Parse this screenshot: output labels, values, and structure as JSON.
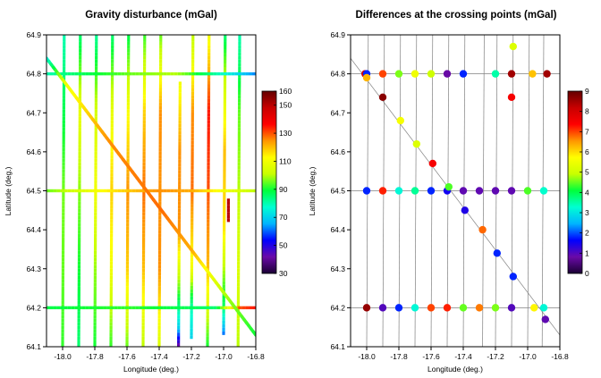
{
  "chart_data": [
    {
      "type": "heatmap",
      "title": "Gravity disturbance (mGal)",
      "xlabel": "Longitude (deg.)",
      "ylabel": "Latitude (deg.)",
      "xlim": [
        -18.1,
        -16.8
      ],
      "ylim": [
        64.1,
        64.9
      ],
      "x_ticks": [
        -18.0,
        -17.8,
        -17.6,
        -17.4,
        -17.2,
        -17.0,
        -16.8
      ],
      "x_tick_labels": [
        "-18.0",
        "-17.8",
        "-17.6",
        "-17.4",
        "-17.2",
        "-17.0",
        "-16.8"
      ],
      "y_ticks": [
        64.1,
        64.2,
        64.3,
        64.4,
        64.5,
        64.6,
        64.7,
        64.8,
        64.9
      ],
      "y_tick_labels": [
        "64.1",
        "64.2",
        "64.3",
        "64.4",
        "64.5",
        "64.6",
        "64.7",
        "64.8",
        "64.9"
      ],
      "colorbar": {
        "min": 30,
        "max": 160,
        "ticks": [
          30,
          50,
          70,
          90,
          110,
          130,
          150,
          160
        ],
        "tick_labels": [
          "30",
          "50",
          "70",
          "90",
          "110",
          "130",
          "150",
          "160"
        ],
        "colors": [
          "#1a0033",
          "#6a0aa8",
          "#0000ff",
          "#00b4ff",
          "#00ffd2",
          "#00ff3c",
          "#c8ff00",
          "#ffff00",
          "#ff9600",
          "#ff0000",
          "#c80000",
          "#640000"
        ]
      },
      "grid": false,
      "legend": "colorbar right",
      "north_south_lines": [
        {
          "lon_bottom": -18.0,
          "lon_top": -17.99,
          "lat_start": 64.1,
          "lat_end": 64.9,
          "values": [
            [
              64.1,
              92
            ],
            [
              64.3,
              95
            ],
            [
              64.5,
              96
            ],
            [
              64.7,
              88
            ],
            [
              64.9,
              80
            ]
          ]
        },
        {
          "lon_bottom": -17.9,
          "lon_top": -17.89,
          "lat_start": 64.1,
          "lat_end": 64.9,
          "values": [
            [
              64.1,
              85
            ],
            [
              64.3,
              90
            ],
            [
              64.5,
              97
            ],
            [
              64.7,
              108
            ],
            [
              64.9,
              85
            ]
          ]
        },
        {
          "lon_bottom": -17.8,
          "lon_top": -17.79,
          "lat_start": 64.1,
          "lat_end": 64.9,
          "values": [
            [
              64.1,
              90
            ],
            [
              64.3,
              98
            ],
            [
              64.5,
              110
            ],
            [
              64.7,
              104
            ],
            [
              64.9,
              82
            ]
          ]
        },
        {
          "lon_bottom": -17.7,
          "lon_top": -17.69,
          "lat_start": 64.1,
          "lat_end": 64.9,
          "values": [
            [
              64.1,
              92
            ],
            [
              64.3,
              110
            ],
            [
              64.5,
              118
            ],
            [
              64.7,
              108
            ],
            [
              64.9,
              85
            ]
          ]
        },
        {
          "lon_bottom": -17.6,
          "lon_top": -17.59,
          "lat_start": 64.1,
          "lat_end": 64.9,
          "values": [
            [
              64.1,
              95
            ],
            [
              64.3,
              118
            ],
            [
              64.5,
              125
            ],
            [
              64.7,
              112
            ],
            [
              64.9,
              88
            ]
          ]
        },
        {
          "lon_bottom": -17.5,
          "lon_top": -17.49,
          "lat_start": 64.1,
          "lat_end": 64.9,
          "values": [
            [
              64.1,
              100
            ],
            [
              64.3,
              120
            ],
            [
              64.5,
              128
            ],
            [
              64.7,
              118
            ],
            [
              64.9,
              92
            ]
          ]
        },
        {
          "lon_bottom": -17.4,
          "lon_top": -17.39,
          "lat_start": 64.1,
          "lat_end": 64.9,
          "values": [
            [
              64.1,
              105
            ],
            [
              64.3,
              125
            ],
            [
              64.5,
              125
            ],
            [
              64.7,
              125
            ],
            [
              64.9,
              95
            ]
          ]
        },
        {
          "lon_bottom": -17.28,
          "lon_top": -17.27,
          "lat_start": 64.1,
          "lat_end": 64.78,
          "values": [
            [
              64.1,
              40
            ],
            [
              64.15,
              70
            ],
            [
              64.25,
              95
            ],
            [
              64.4,
              125
            ],
            [
              64.6,
              125
            ],
            [
              64.78,
              110
            ]
          ]
        },
        {
          "lon_bottom": -17.2,
          "lon_top": -17.19,
          "lat_start": 64.12,
          "lat_end": 64.9,
          "values": [
            [
              64.12,
              70
            ],
            [
              64.2,
              80
            ],
            [
              64.3,
              110
            ],
            [
              64.5,
              128
            ],
            [
              64.7,
              125
            ],
            [
              64.9,
              100
            ]
          ]
        },
        {
          "lon_bottom": -17.1,
          "lon_top": -17.09,
          "lat_start": 64.1,
          "lat_end": 64.9,
          "values": [
            [
              64.1,
              90
            ],
            [
              64.3,
              120
            ],
            [
              64.5,
              130
            ],
            [
              64.7,
              135
            ],
            [
              64.9,
              110
            ]
          ]
        },
        {
          "lon_bottom": -17.0,
          "lon_top": -16.99,
          "lat_start": 64.13,
          "lat_end": 64.9,
          "values": [
            [
              64.13,
              60
            ],
            [
              64.2,
              85
            ],
            [
              64.4,
              115
            ],
            [
              64.6,
              120
            ],
            [
              64.8,
              100
            ],
            [
              64.9,
              85
            ]
          ]
        },
        {
          "lon_bottom": -16.91,
          "lon_top": -16.9,
          "lat_start": 64.1,
          "lat_end": 64.9,
          "values": [
            [
              64.1,
              100
            ],
            [
              64.3,
              105
            ],
            [
              64.5,
              100
            ],
            [
              64.7,
              95
            ],
            [
              64.9,
              80
            ]
          ]
        },
        {
          "lon_bottom": -16.97,
          "lon_top": -16.97,
          "lat_start": 64.42,
          "lat_end": 64.48,
          "values": [
            [
              64.42,
              150
            ],
            [
              64.48,
              150
            ]
          ]
        }
      ],
      "east_west_lines": [
        {
          "lat": 64.8,
          "lon_start": -18.1,
          "lon_end": -16.8,
          "values": [
            [
              -18.1,
              80
            ],
            [
              -17.6,
              95
            ],
            [
              -17.3,
              100
            ],
            [
              -17.1,
              85
            ],
            [
              -16.9,
              70
            ],
            [
              -16.8,
              62
            ]
          ]
        },
        {
          "lat": 64.5,
          "lon_start": -18.1,
          "lon_end": -16.8,
          "values": [
            [
              -18.1,
              95
            ],
            [
              -17.7,
              115
            ],
            [
              -17.4,
              125
            ],
            [
              -17.2,
              122
            ],
            [
              -17.0,
              110
            ],
            [
              -16.8,
              100
            ]
          ]
        },
        {
          "lat": 64.2,
          "lon_start": -18.1,
          "lon_end": -16.8,
          "values": [
            [
              -18.1,
              88
            ],
            [
              -17.6,
              92
            ],
            [
              -17.3,
              88
            ],
            [
              -17.05,
              85
            ],
            [
              -16.9,
              130
            ],
            [
              -16.8,
              135
            ]
          ]
        }
      ],
      "diagonal_line": {
        "start": [
          -18.1,
          64.84
        ],
        "end": [
          -16.8,
          64.13
        ],
        "values": [
          [
            0,
            75
          ],
          [
            0.1,
            110
          ],
          [
            0.3,
            125
          ],
          [
            0.55,
            128
          ],
          [
            0.7,
            122
          ],
          [
            0.85,
            100
          ],
          [
            1,
            90
          ]
        ]
      }
    },
    {
      "type": "scatter",
      "title": "Differences at the crossing points (mGal)",
      "xlabel": "Longitude (deg.)",
      "ylabel": "Latitude (deg.)",
      "xlim": [
        -18.1,
        -16.8
      ],
      "ylim": [
        64.1,
        64.9
      ],
      "x_ticks": [
        -18.0,
        -17.8,
        -17.6,
        -17.4,
        -17.2,
        -17.0,
        -16.8
      ],
      "x_tick_labels": [
        "-18.0",
        "-17.8",
        "-17.6",
        "-17.4",
        "-17.2",
        "-17.0",
        "-16.8"
      ],
      "y_ticks": [
        64.1,
        64.2,
        64.3,
        64.4,
        64.5,
        64.6,
        64.7,
        64.8,
        64.9
      ],
      "y_tick_labels": [
        "64.1",
        "64.2",
        "64.3",
        "64.4",
        "64.5",
        "64.6",
        "64.7",
        "64.8",
        "64.9"
      ],
      "colorbar": {
        "min": 0,
        "max": 9,
        "ticks": [
          0,
          1,
          2,
          3,
          4,
          5,
          6,
          7,
          8,
          9
        ],
        "tick_labels": [
          "0",
          "1",
          "2",
          "3",
          "4",
          "5",
          "6",
          "7",
          "8",
          "9"
        ],
        "colors": [
          "#1a0033",
          "#6a0aa8",
          "#0000ff",
          "#00b4ff",
          "#00ffd2",
          "#00ff3c",
          "#c8ff00",
          "#ffff00",
          "#ff9600",
          "#ff0000",
          "#c80000",
          "#640000"
        ]
      },
      "grid": false,
      "legend": "colorbar right",
      "track_lines": {
        "north_south": [
          [
            -18.0,
            -17.99
          ],
          [
            -17.9,
            -17.89
          ],
          [
            -17.8,
            -17.79
          ],
          [
            -17.7,
            -17.69
          ],
          [
            -17.6,
            -17.59
          ],
          [
            -17.5,
            -17.49
          ],
          [
            -17.4,
            -17.39
          ],
          [
            -17.28,
            -17.27
          ],
          [
            -17.2,
            -17.19
          ],
          [
            -17.1,
            -17.09
          ],
          [
            -17.0,
            -16.99
          ],
          [
            -16.91,
            -16.9
          ]
        ],
        "east_west": [
          64.8,
          64.5,
          64.2
        ],
        "diagonal": [
          [
            -18.1,
            64.84
          ],
          [
            -16.8,
            64.13
          ]
        ]
      },
      "points": [
        {
          "x": -18.01,
          "y": 64.8,
          "v": 8.0
        },
        {
          "x": -18.0,
          "y": 64.8,
          "v": 1.8
        },
        {
          "x": -18.0,
          "y": 64.79,
          "v": 6.3
        },
        {
          "x": -17.9,
          "y": 64.8,
          "v": 7.0
        },
        {
          "x": -17.8,
          "y": 64.8,
          "v": 4.6
        },
        {
          "x": -17.7,
          "y": 64.8,
          "v": 5.5
        },
        {
          "x": -17.6,
          "y": 64.8,
          "v": 5.0
        },
        {
          "x": -17.5,
          "y": 64.8,
          "v": 0.8
        },
        {
          "x": -17.4,
          "y": 64.8,
          "v": 1.8
        },
        {
          "x": -17.2,
          "y": 64.8,
          "v": 3.5
        },
        {
          "x": -17.1,
          "y": 64.8,
          "v": 8.5
        },
        {
          "x": -16.97,
          "y": 64.8,
          "v": 6.2
        },
        {
          "x": -16.88,
          "y": 64.8,
          "v": 8.5
        },
        {
          "x": -17.09,
          "y": 64.87,
          "v": 5.2
        },
        {
          "x": -17.1,
          "y": 64.74,
          "v": 7.5
        },
        {
          "x": -17.9,
          "y": 64.74,
          "v": 8.7
        },
        {
          "x": -17.79,
          "y": 64.68,
          "v": 5.6
        },
        {
          "x": -17.69,
          "y": 64.62,
          "v": 5.2
        },
        {
          "x": -17.59,
          "y": 64.57,
          "v": 7.5
        },
        {
          "x": -18.0,
          "y": 64.5,
          "v": 1.8
        },
        {
          "x": -17.9,
          "y": 64.5,
          "v": 7.2
        },
        {
          "x": -17.8,
          "y": 64.5,
          "v": 3.2
        },
        {
          "x": -17.7,
          "y": 64.5,
          "v": 3.6
        },
        {
          "x": -17.6,
          "y": 64.5,
          "v": 1.8
        },
        {
          "x": -17.5,
          "y": 64.5,
          "v": 1.5
        },
        {
          "x": -17.49,
          "y": 64.51,
          "v": 4.4
        },
        {
          "x": -17.4,
          "y": 64.5,
          "v": 0.9
        },
        {
          "x": -17.3,
          "y": 64.5,
          "v": 0.9
        },
        {
          "x": -17.2,
          "y": 64.5,
          "v": 0.9
        },
        {
          "x": -17.1,
          "y": 64.5,
          "v": 0.9
        },
        {
          "x": -17.0,
          "y": 64.5,
          "v": 4.4
        },
        {
          "x": -16.9,
          "y": 64.5,
          "v": 3.3
        },
        {
          "x": -17.39,
          "y": 64.45,
          "v": 1.4
        },
        {
          "x": -17.28,
          "y": 64.4,
          "v": 6.8
        },
        {
          "x": -17.19,
          "y": 64.34,
          "v": 1.8
        },
        {
          "x": -17.09,
          "y": 64.28,
          "v": 1.8
        },
        {
          "x": -18.0,
          "y": 64.2,
          "v": 8.6
        },
        {
          "x": -17.9,
          "y": 64.2,
          "v": 1.0
        },
        {
          "x": -17.8,
          "y": 64.2,
          "v": 1.8
        },
        {
          "x": -17.7,
          "y": 64.2,
          "v": 3.2
        },
        {
          "x": -17.6,
          "y": 64.2,
          "v": 7.0
        },
        {
          "x": -17.5,
          "y": 64.2,
          "v": 7.2
        },
        {
          "x": -17.4,
          "y": 64.2,
          "v": 4.5
        },
        {
          "x": -17.3,
          "y": 64.2,
          "v": 6.7
        },
        {
          "x": -17.2,
          "y": 64.2,
          "v": 4.6
        },
        {
          "x": -17.1,
          "y": 64.2,
          "v": 1.0
        },
        {
          "x": -16.96,
          "y": 64.2,
          "v": 5.8
        },
        {
          "x": -16.9,
          "y": 64.2,
          "v": 3.2
        },
        {
          "x": -16.89,
          "y": 64.17,
          "v": 0.9
        }
      ]
    }
  ]
}
